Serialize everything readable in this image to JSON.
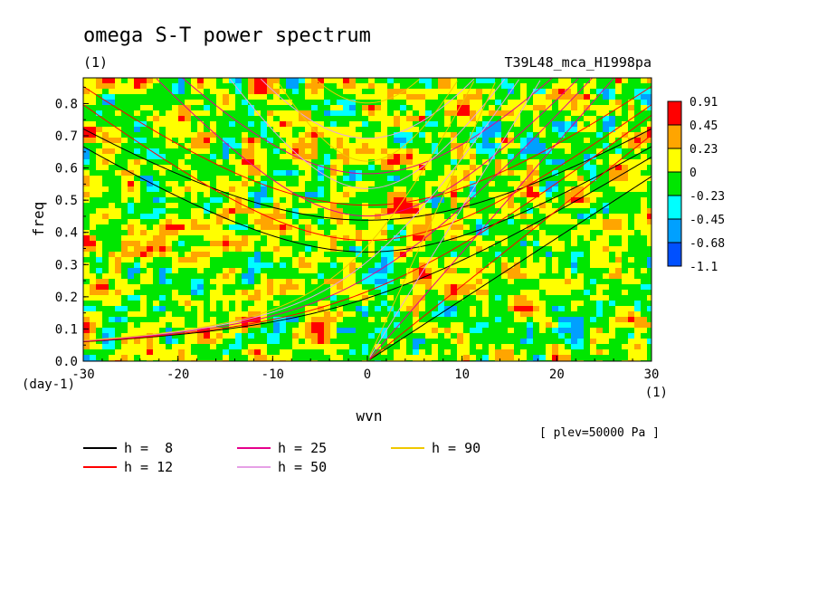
{
  "chart_data": {
    "type": "heatmap",
    "title": "omega S-T power spectrum",
    "subtitle": "(1)",
    "run_label": "T39L48_mca_H1998pa",
    "xlabel": "wvn",
    "ylabel": "freq",
    "x_unit": "(1)",
    "y_unit": "(day-1)",
    "xlim": [
      -30,
      30
    ],
    "ylim": [
      0,
      0.88
    ],
    "x_ticks": [
      -30,
      -20,
      -10,
      0,
      10,
      20,
      30
    ],
    "x_tick_labels": [
      "-30",
      "-20",
      "-10",
      "0",
      "10",
      "20",
      "30"
    ],
    "y_ticks": [
      0,
      0.1,
      0.2,
      0.3,
      0.4,
      0.5,
      0.6,
      0.7,
      0.8
    ],
    "y_tick_labels": [
      "0.0",
      "0.1",
      "0.2",
      "0.3",
      "0.4",
      "0.5",
      "0.6",
      "0.7",
      "0.8"
    ],
    "note": "[ plev=50000 Pa ]",
    "colorbar": {
      "levels": [
        "0.91",
        "0.45",
        "0.23",
        "0",
        "-0.23",
        "-0.45",
        "-0.68",
        "-1.1"
      ],
      "colors": [
        "#ff0000",
        "#ffa500",
        "#ffff00",
        "#00e600",
        "#00ffff",
        "#00a0ff",
        "#0050ff"
      ]
    },
    "curves": [
      {
        "label": "h =  8",
        "h": 8,
        "color": "#000000"
      },
      {
        "label": "h = 12",
        "h": 12,
        "color": "#ff0000"
      },
      {
        "label": "h = 25",
        "h": 25,
        "color": "#e6008c"
      },
      {
        "label": "h = 50",
        "h": 50,
        "color": "#e6a0e6"
      },
      {
        "label": "h = 90",
        "h": 90,
        "color": "#f0c800"
      }
    ],
    "grid": false,
    "legend_position": "bottom-left"
  }
}
